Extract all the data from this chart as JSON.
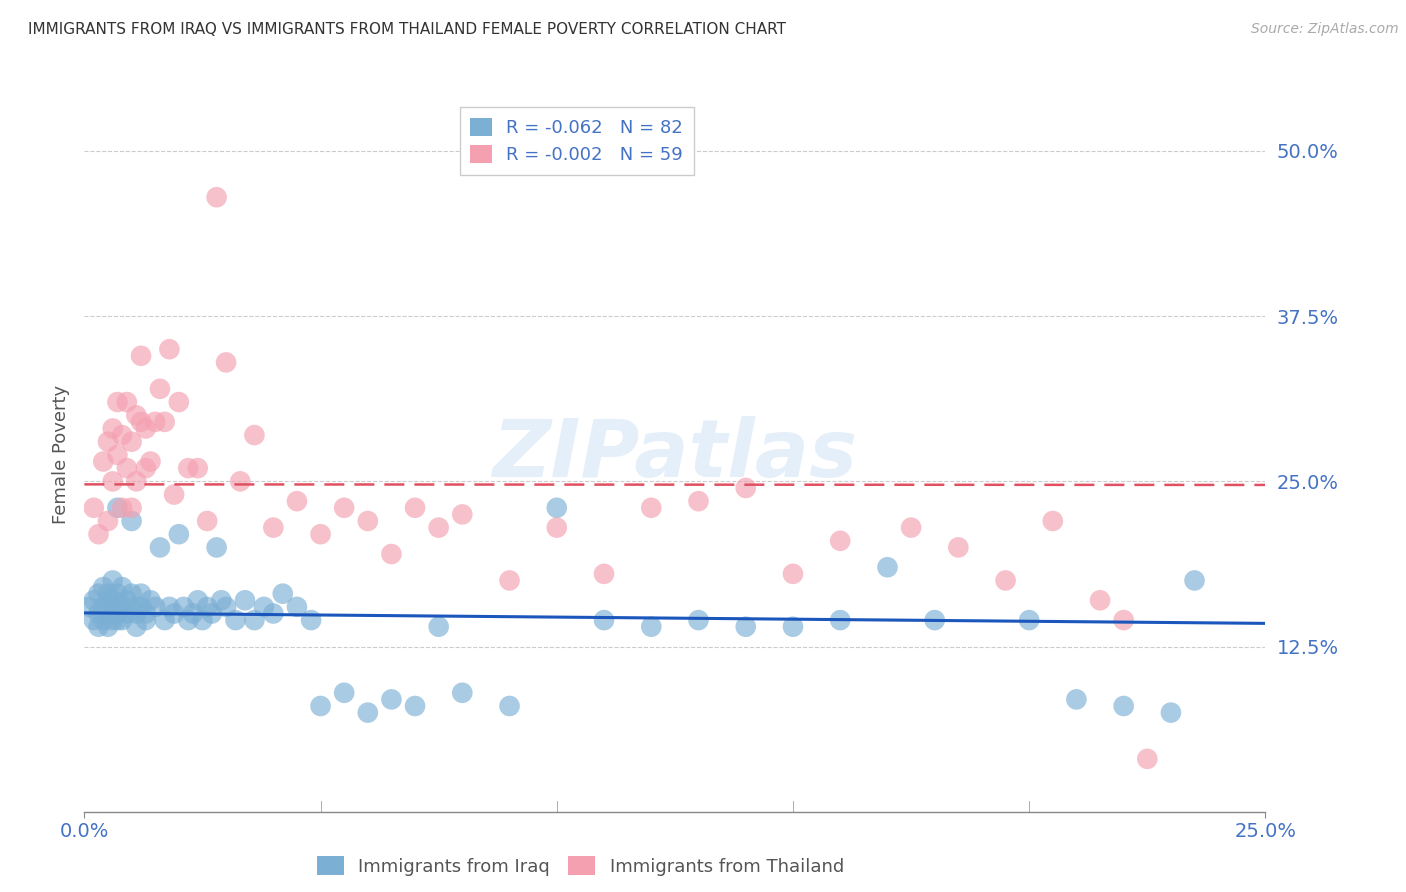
{
  "title": "IMMIGRANTS FROM IRAQ VS IMMIGRANTS FROM THAILAND FEMALE POVERTY CORRELATION CHART",
  "source": "Source: ZipAtlas.com",
  "ylabel": "Female Poverty",
  "ytick_labels": [
    "50.0%",
    "37.5%",
    "25.0%",
    "12.5%"
  ],
  "ytick_values": [
    0.5,
    0.375,
    0.25,
    0.125
  ],
  "xmin": 0.0,
  "xmax": 0.25,
  "ymin": 0.0,
  "ymax": 0.54,
  "iraq_color": "#7bafd4",
  "thailand_color": "#f4a0b0",
  "iraq_R": -0.062,
  "iraq_N": 82,
  "thailand_R": -0.002,
  "thailand_N": 59,
  "iraq_line_color": "#1a56bb",
  "thailand_line_color": "#e05060",
  "legend_r_color": "#e03050",
  "legend_n_color": "#4472c4",
  "watermark_text": "ZIPatlas",
  "background_color": "#ffffff",
  "grid_color": "#cccccc",
  "iraq_x": [
    0.001,
    0.002,
    0.002,
    0.003,
    0.003,
    0.003,
    0.004,
    0.004,
    0.004,
    0.005,
    0.005,
    0.005,
    0.005,
    0.006,
    0.006,
    0.006,
    0.006,
    0.007,
    0.007,
    0.007,
    0.007,
    0.008,
    0.008,
    0.008,
    0.009,
    0.009,
    0.01,
    0.01,
    0.01,
    0.011,
    0.011,
    0.012,
    0.012,
    0.013,
    0.013,
    0.014,
    0.015,
    0.016,
    0.017,
    0.018,
    0.019,
    0.02,
    0.021,
    0.022,
    0.023,
    0.024,
    0.025,
    0.026,
    0.027,
    0.028,
    0.029,
    0.03,
    0.032,
    0.034,
    0.036,
    0.038,
    0.04,
    0.042,
    0.045,
    0.048,
    0.05,
    0.055,
    0.06,
    0.065,
    0.07,
    0.075,
    0.08,
    0.09,
    0.1,
    0.11,
    0.12,
    0.13,
    0.14,
    0.15,
    0.16,
    0.17,
    0.18,
    0.2,
    0.21,
    0.22,
    0.23,
    0.235
  ],
  "iraq_y": [
    0.155,
    0.145,
    0.16,
    0.15,
    0.165,
    0.14,
    0.155,
    0.145,
    0.17,
    0.15,
    0.16,
    0.14,
    0.165,
    0.155,
    0.145,
    0.16,
    0.175,
    0.15,
    0.165,
    0.145,
    0.23,
    0.155,
    0.17,
    0.145,
    0.16,
    0.15,
    0.155,
    0.165,
    0.22,
    0.15,
    0.14,
    0.155,
    0.165,
    0.15,
    0.145,
    0.16,
    0.155,
    0.2,
    0.145,
    0.155,
    0.15,
    0.21,
    0.155,
    0.145,
    0.15,
    0.16,
    0.145,
    0.155,
    0.15,
    0.2,
    0.16,
    0.155,
    0.145,
    0.16,
    0.145,
    0.155,
    0.15,
    0.165,
    0.155,
    0.145,
    0.08,
    0.09,
    0.075,
    0.085,
    0.08,
    0.14,
    0.09,
    0.08,
    0.23,
    0.145,
    0.14,
    0.145,
    0.14,
    0.14,
    0.145,
    0.185,
    0.145,
    0.145,
    0.085,
    0.08,
    0.075,
    0.175
  ],
  "thailand_x": [
    0.002,
    0.003,
    0.004,
    0.005,
    0.005,
    0.006,
    0.006,
    0.007,
    0.007,
    0.008,
    0.008,
    0.009,
    0.009,
    0.01,
    0.01,
    0.011,
    0.011,
    0.012,
    0.012,
    0.013,
    0.013,
    0.014,
    0.015,
    0.016,
    0.017,
    0.018,
    0.019,
    0.02,
    0.022,
    0.024,
    0.026,
    0.028,
    0.03,
    0.033,
    0.036,
    0.04,
    0.045,
    0.05,
    0.055,
    0.06,
    0.065,
    0.07,
    0.075,
    0.08,
    0.09,
    0.1,
    0.11,
    0.12,
    0.13,
    0.14,
    0.15,
    0.16,
    0.175,
    0.185,
    0.195,
    0.205,
    0.215,
    0.22,
    0.225
  ],
  "thailand_y": [
    0.23,
    0.21,
    0.265,
    0.28,
    0.22,
    0.29,
    0.25,
    0.31,
    0.27,
    0.23,
    0.285,
    0.31,
    0.26,
    0.28,
    0.23,
    0.3,
    0.25,
    0.295,
    0.345,
    0.26,
    0.29,
    0.265,
    0.295,
    0.32,
    0.295,
    0.35,
    0.24,
    0.31,
    0.26,
    0.26,
    0.22,
    0.465,
    0.34,
    0.25,
    0.285,
    0.215,
    0.235,
    0.21,
    0.23,
    0.22,
    0.195,
    0.23,
    0.215,
    0.225,
    0.175,
    0.215,
    0.18,
    0.23,
    0.235,
    0.245,
    0.18,
    0.205,
    0.215,
    0.2,
    0.175,
    0.22,
    0.16,
    0.145,
    0.04
  ]
}
